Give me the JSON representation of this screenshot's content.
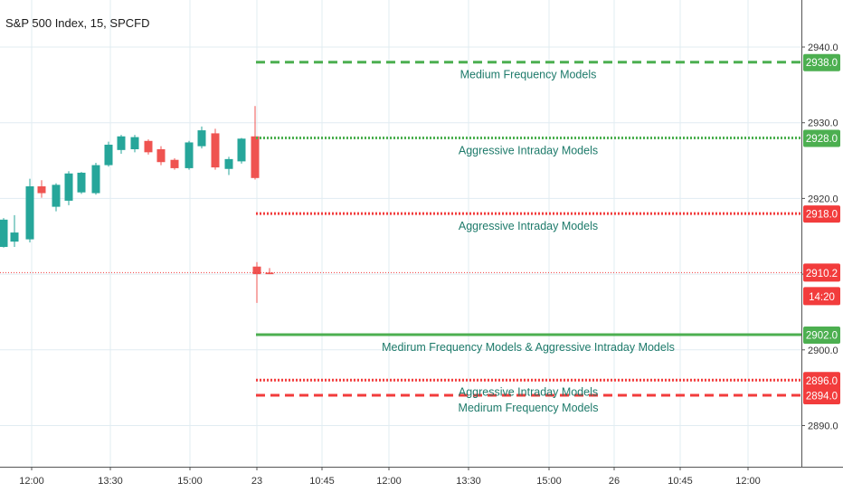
{
  "chart_data": {
    "type": "candlestick",
    "title": "S&P 500 Index, 15, SPCFD",
    "ylim": [
      2886,
      2943
    ],
    "y_ticks": [
      "2940.0",
      "2930.0",
      "2920.0",
      "2910.0",
      "2900.0",
      "2890.0"
    ],
    "x_ticks": [
      "12:00",
      "13:30",
      "15:00",
      "23",
      "10:45",
      "12:00",
      "13:30",
      "15:00",
      "26",
      "10:45",
      "12:00"
    ],
    "grid": true,
    "colors": {
      "up": "#26a69a",
      "down": "#ef5350",
      "green_line": "#4caf50",
      "red_line": "#f23c3c"
    },
    "candles": [
      {
        "open": 2913.6,
        "high": 2917.4,
        "low": 2913.5,
        "close": 2917.2
      },
      {
        "open": 2914.3,
        "high": 2917.8,
        "low": 2913.6,
        "close": 2915.5
      },
      {
        "open": 2914.6,
        "high": 2922.6,
        "low": 2914.2,
        "close": 2921.6
      },
      {
        "open": 2921.6,
        "high": 2922.4,
        "low": 2920.1,
        "close": 2920.7
      },
      {
        "open": 2918.9,
        "high": 2922.0,
        "low": 2918.3,
        "close": 2921.8
      },
      {
        "open": 2919.7,
        "high": 2923.6,
        "low": 2919.1,
        "close": 2923.3
      },
      {
        "open": 2920.8,
        "high": 2923.5,
        "low": 2920.6,
        "close": 2923.4
      },
      {
        "open": 2920.7,
        "high": 2924.7,
        "low": 2920.5,
        "close": 2924.4
      },
      {
        "open": 2924.4,
        "high": 2927.5,
        "low": 2924.2,
        "close": 2927.1
      },
      {
        "open": 2926.4,
        "high": 2928.4,
        "low": 2925.9,
        "close": 2928.2
      },
      {
        "open": 2926.5,
        "high": 2928.4,
        "low": 2926.1,
        "close": 2928.1
      },
      {
        "open": 2927.6,
        "high": 2927.8,
        "low": 2925.8,
        "close": 2926.1
      },
      {
        "open": 2926.5,
        "high": 2926.9,
        "low": 2924.4,
        "close": 2924.8
      },
      {
        "open": 2925.1,
        "high": 2925.3,
        "low": 2923.8,
        "close": 2924.0
      },
      {
        "open": 2924.0,
        "high": 2927.6,
        "low": 2923.8,
        "close": 2927.4
      },
      {
        "open": 2926.9,
        "high": 2929.5,
        "low": 2926.6,
        "close": 2929.0
      },
      {
        "open": 2928.6,
        "high": 2929.2,
        "low": 2923.8,
        "close": 2924.1
      },
      {
        "open": 2923.9,
        "high": 2925.5,
        "low": 2923.1,
        "close": 2925.2
      },
      {
        "open": 2924.9,
        "high": 2928.0,
        "low": 2924.6,
        "close": 2927.9
      },
      {
        "open": 2928.2,
        "high": 2932.2,
        "low": 2922.5,
        "close": 2922.7
      },
      {
        "open": 2923.6,
        "high": 2923.6,
        "low": 2923.2,
        "close": 2923.2
      },
      {
        "open": 2911.0,
        "high": 2911.6,
        "low": 2906.2,
        "close": 2910.0
      },
      {
        "open": 2910.2,
        "high": 2910.8,
        "low": 2910.0,
        "close": 2910.0
      }
    ],
    "current_price": {
      "value": 2910.2,
      "label": "2910.2",
      "time": "14:20"
    },
    "levels": [
      {
        "value": 2938.0,
        "label": "2938.0",
        "note": "Medium Frequency Models",
        "color": "green",
        "style": "dashed"
      },
      {
        "value": 2928.0,
        "label": "2928.0",
        "note": "Aggressive Intraday Models",
        "color": "green",
        "style": "dotted"
      },
      {
        "value": 2918.0,
        "label": "2918.0",
        "note": "Aggressive Intraday Models",
        "color": "red",
        "style": "dotted"
      },
      {
        "value": 2902.0,
        "label": "2902.0",
        "note": "Medirum Frequency Models & Aggressive Intraday Models",
        "color": "green",
        "style": "solid"
      },
      {
        "value": 2896.0,
        "label": "2896.0",
        "note": "Aggressive Intraday Models",
        "color": "red",
        "style": "dotted"
      },
      {
        "value": 2894.0,
        "label": "2894.0",
        "note": "Medirum Frequency Models",
        "color": "red",
        "style": "dashed"
      }
    ]
  }
}
